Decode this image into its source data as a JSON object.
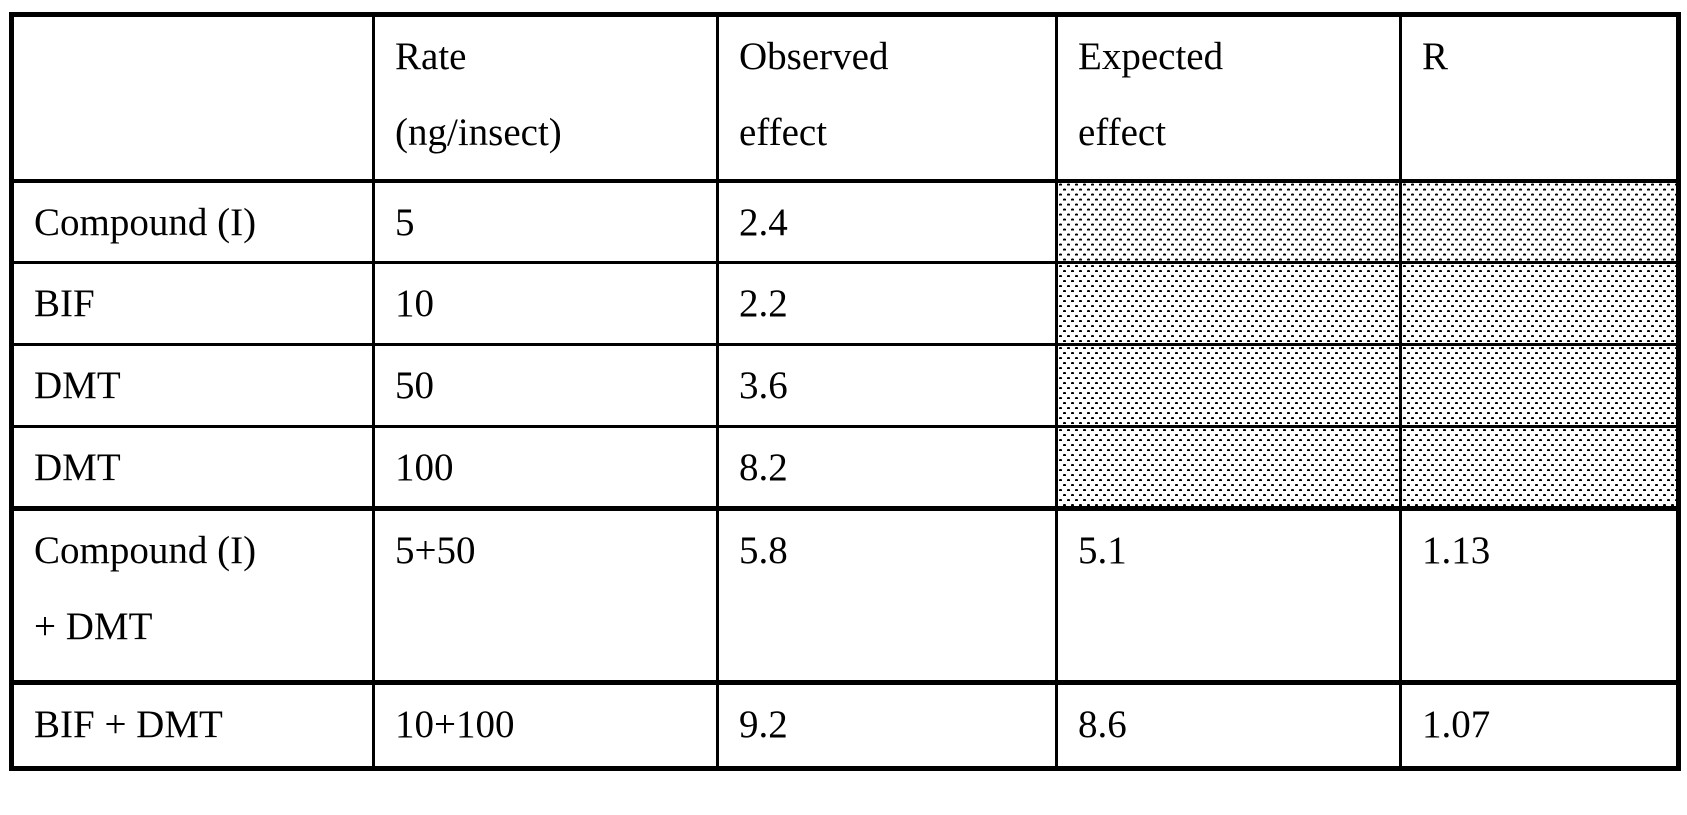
{
  "page": {
    "background": "#ffffff"
  },
  "colors": {
    "border": "#000000",
    "text": "#000000",
    "background": "#ffffff",
    "hatch_dot": "#000000"
  },
  "table": {
    "header": {
      "treatment": {
        "line1": "",
        "line2": ""
      },
      "rate": {
        "line1": "Rate",
        "line2": "(ng/insect)"
      },
      "observed": {
        "line1": "Observed",
        "line2": "effect"
      },
      "expected": {
        "line1": "Expected",
        "line2": "effect"
      },
      "r": {
        "line1": "R",
        "line2": ""
      }
    },
    "rows": [
      {
        "treatment": "Compound (I)",
        "treatment_line2": "",
        "rate": "5",
        "observed": "2.4",
        "expected": null,
        "r": null,
        "hatched": true
      },
      {
        "treatment": "BIF",
        "treatment_line2": "",
        "rate": "10",
        "observed": "2.2",
        "expected": null,
        "r": null,
        "hatched": true
      },
      {
        "treatment": "DMT",
        "treatment_line2": "",
        "rate": "50",
        "observed": "3.6",
        "expected": null,
        "r": null,
        "hatched": true
      },
      {
        "treatment": "DMT",
        "treatment_line2": "",
        "rate": "100",
        "observed": "8.2",
        "expected": null,
        "r": null,
        "hatched": true
      },
      {
        "treatment": "Compound (I)",
        "treatment_line2": "+ DMT",
        "rate": "5+50",
        "observed": "5.8",
        "expected": "5.1",
        "r": "1.13",
        "hatched": false
      },
      {
        "treatment": "BIF + DMT",
        "treatment_line2": "",
        "rate": "10+100",
        "observed": "9.2",
        "expected": "8.6",
        "r": "1.07",
        "hatched": false
      }
    ]
  }
}
